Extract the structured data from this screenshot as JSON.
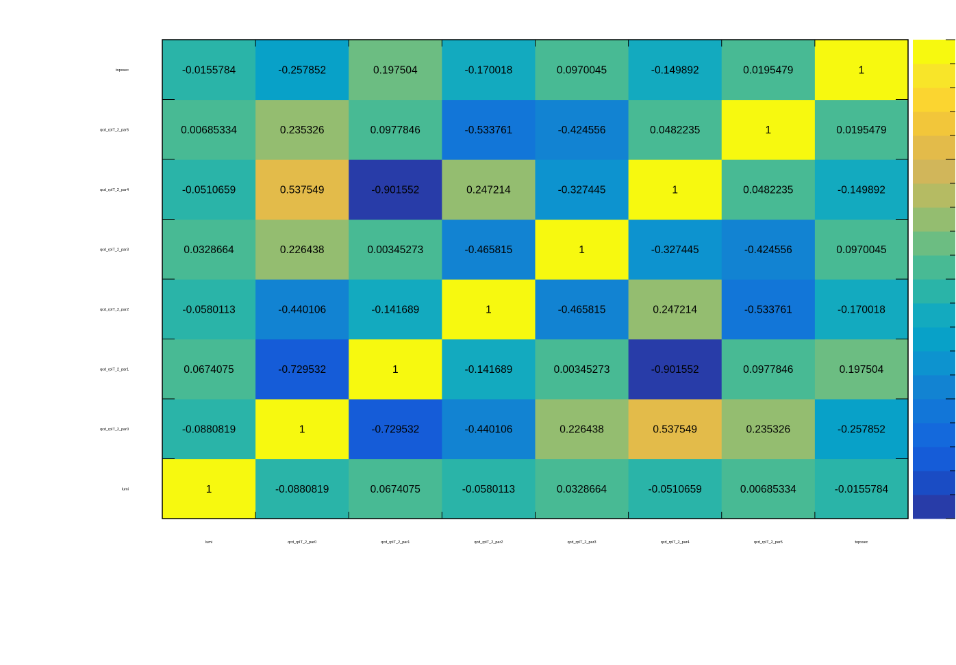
{
  "chart_data": {
    "type": "heatmap",
    "title": "",
    "xlabel": "",
    "ylabel": "",
    "x_categories": [
      "lumi",
      "qcd_rpIT_2_par0",
      "qcd_rpIT_2_par1",
      "qcd_rpIT_2_par2",
      "qcd_rpIT_2_par3",
      "qcd_rpIT_2_par4",
      "qcd_rpIT_2_par5",
      "topxsec"
    ],
    "y_categories": [
      "lumi",
      "qcd_rpIT_2_par0",
      "qcd_rpIT_2_par1",
      "qcd_rpIT_2_par2",
      "qcd_rpIT_2_par3",
      "qcd_rpIT_2_par4",
      "qcd_rpIT_2_par5",
      "topxsec"
    ],
    "values": [
      [
        1,
        -0.0880819,
        0.0674075,
        -0.0580113,
        0.0328664,
        -0.0510659,
        0.00685334,
        -0.0155784
      ],
      [
        -0.0880819,
        1,
        -0.729532,
        -0.440106,
        0.226438,
        0.537549,
        0.235326,
        -0.257852
      ],
      [
        0.0674075,
        -0.729532,
        1,
        -0.141689,
        0.00345273,
        -0.901552,
        0.0977846,
        0.197504
      ],
      [
        -0.0580113,
        -0.440106,
        -0.141689,
        1,
        -0.465815,
        0.247214,
        -0.533761,
        -0.170018
      ],
      [
        0.0328664,
        0.226438,
        0.00345273,
        -0.465815,
        1,
        -0.327445,
        -0.424556,
        0.0970045
      ],
      [
        -0.0510659,
        0.537549,
        -0.901552,
        0.247214,
        -0.327445,
        1,
        0.0482235,
        -0.149892
      ],
      [
        0.00685334,
        0.235326,
        0.0977846,
        -0.533761,
        -0.424556,
        0.0482235,
        1,
        0.0195479
      ],
      [
        -0.0155784,
        -0.257852,
        0.197504,
        -0.170018,
        0.0970045,
        -0.149892,
        0.0195479,
        1
      ]
    ],
    "value_labels": [
      [
        "1",
        "-0.0880819",
        "0.0674075",
        "-0.0580113",
        "0.0328664",
        "-0.0510659",
        "0.00685334",
        "-0.0155784"
      ],
      [
        "-0.0880819",
        "1",
        "-0.729532",
        "-0.440106",
        "0.226438",
        "0.537549",
        "0.235326",
        "-0.257852"
      ],
      [
        "0.0674075",
        "-0.729532",
        "1",
        "-0.141689",
        "0.00345273",
        "-0.901552",
        "0.0977846",
        "0.197504"
      ],
      [
        "-0.0580113",
        "-0.440106",
        "-0.141689",
        "1",
        "-0.465815",
        "0.247214",
        "-0.533761",
        "-0.170018"
      ],
      [
        "0.0328664",
        "0.226438",
        "0.00345273",
        "-0.465815",
        "1",
        "-0.327445",
        "-0.424556",
        "0.0970045"
      ],
      [
        "-0.0510659",
        "0.537549",
        "-0.901552",
        "0.247214",
        "-0.327445",
        "1",
        "0.0482235",
        "-0.149892"
      ],
      [
        "0.00685334",
        "0.235326",
        "0.0977846",
        "-0.533761",
        "-0.424556",
        "0.0482235",
        "1",
        "0.0195479"
      ],
      [
        "-0.0155784",
        "-0.257852",
        "0.197504",
        "-0.170018",
        "0.0970045",
        "-0.149892",
        "0.0195479",
        "1"
      ]
    ],
    "zlim": [
      -1,
      1
    ],
    "colorscale": [
      "#283ca8",
      "#1a4cc4",
      "#155cd8",
      "#1469dc",
      "#1276d8",
      "#1283d2",
      "#0d93cf",
      "#08a1c8",
      "#13aabf",
      "#2ab4a8",
      "#48ba94",
      "#6cbd82",
      "#94bd70",
      "#b5bb63",
      "#d1b65a",
      "#e3bb4a",
      "#f2c63a",
      "#fbd530",
      "#f8e529",
      "#f7f90f"
    ],
    "legend_position": "right",
    "grid": false
  }
}
